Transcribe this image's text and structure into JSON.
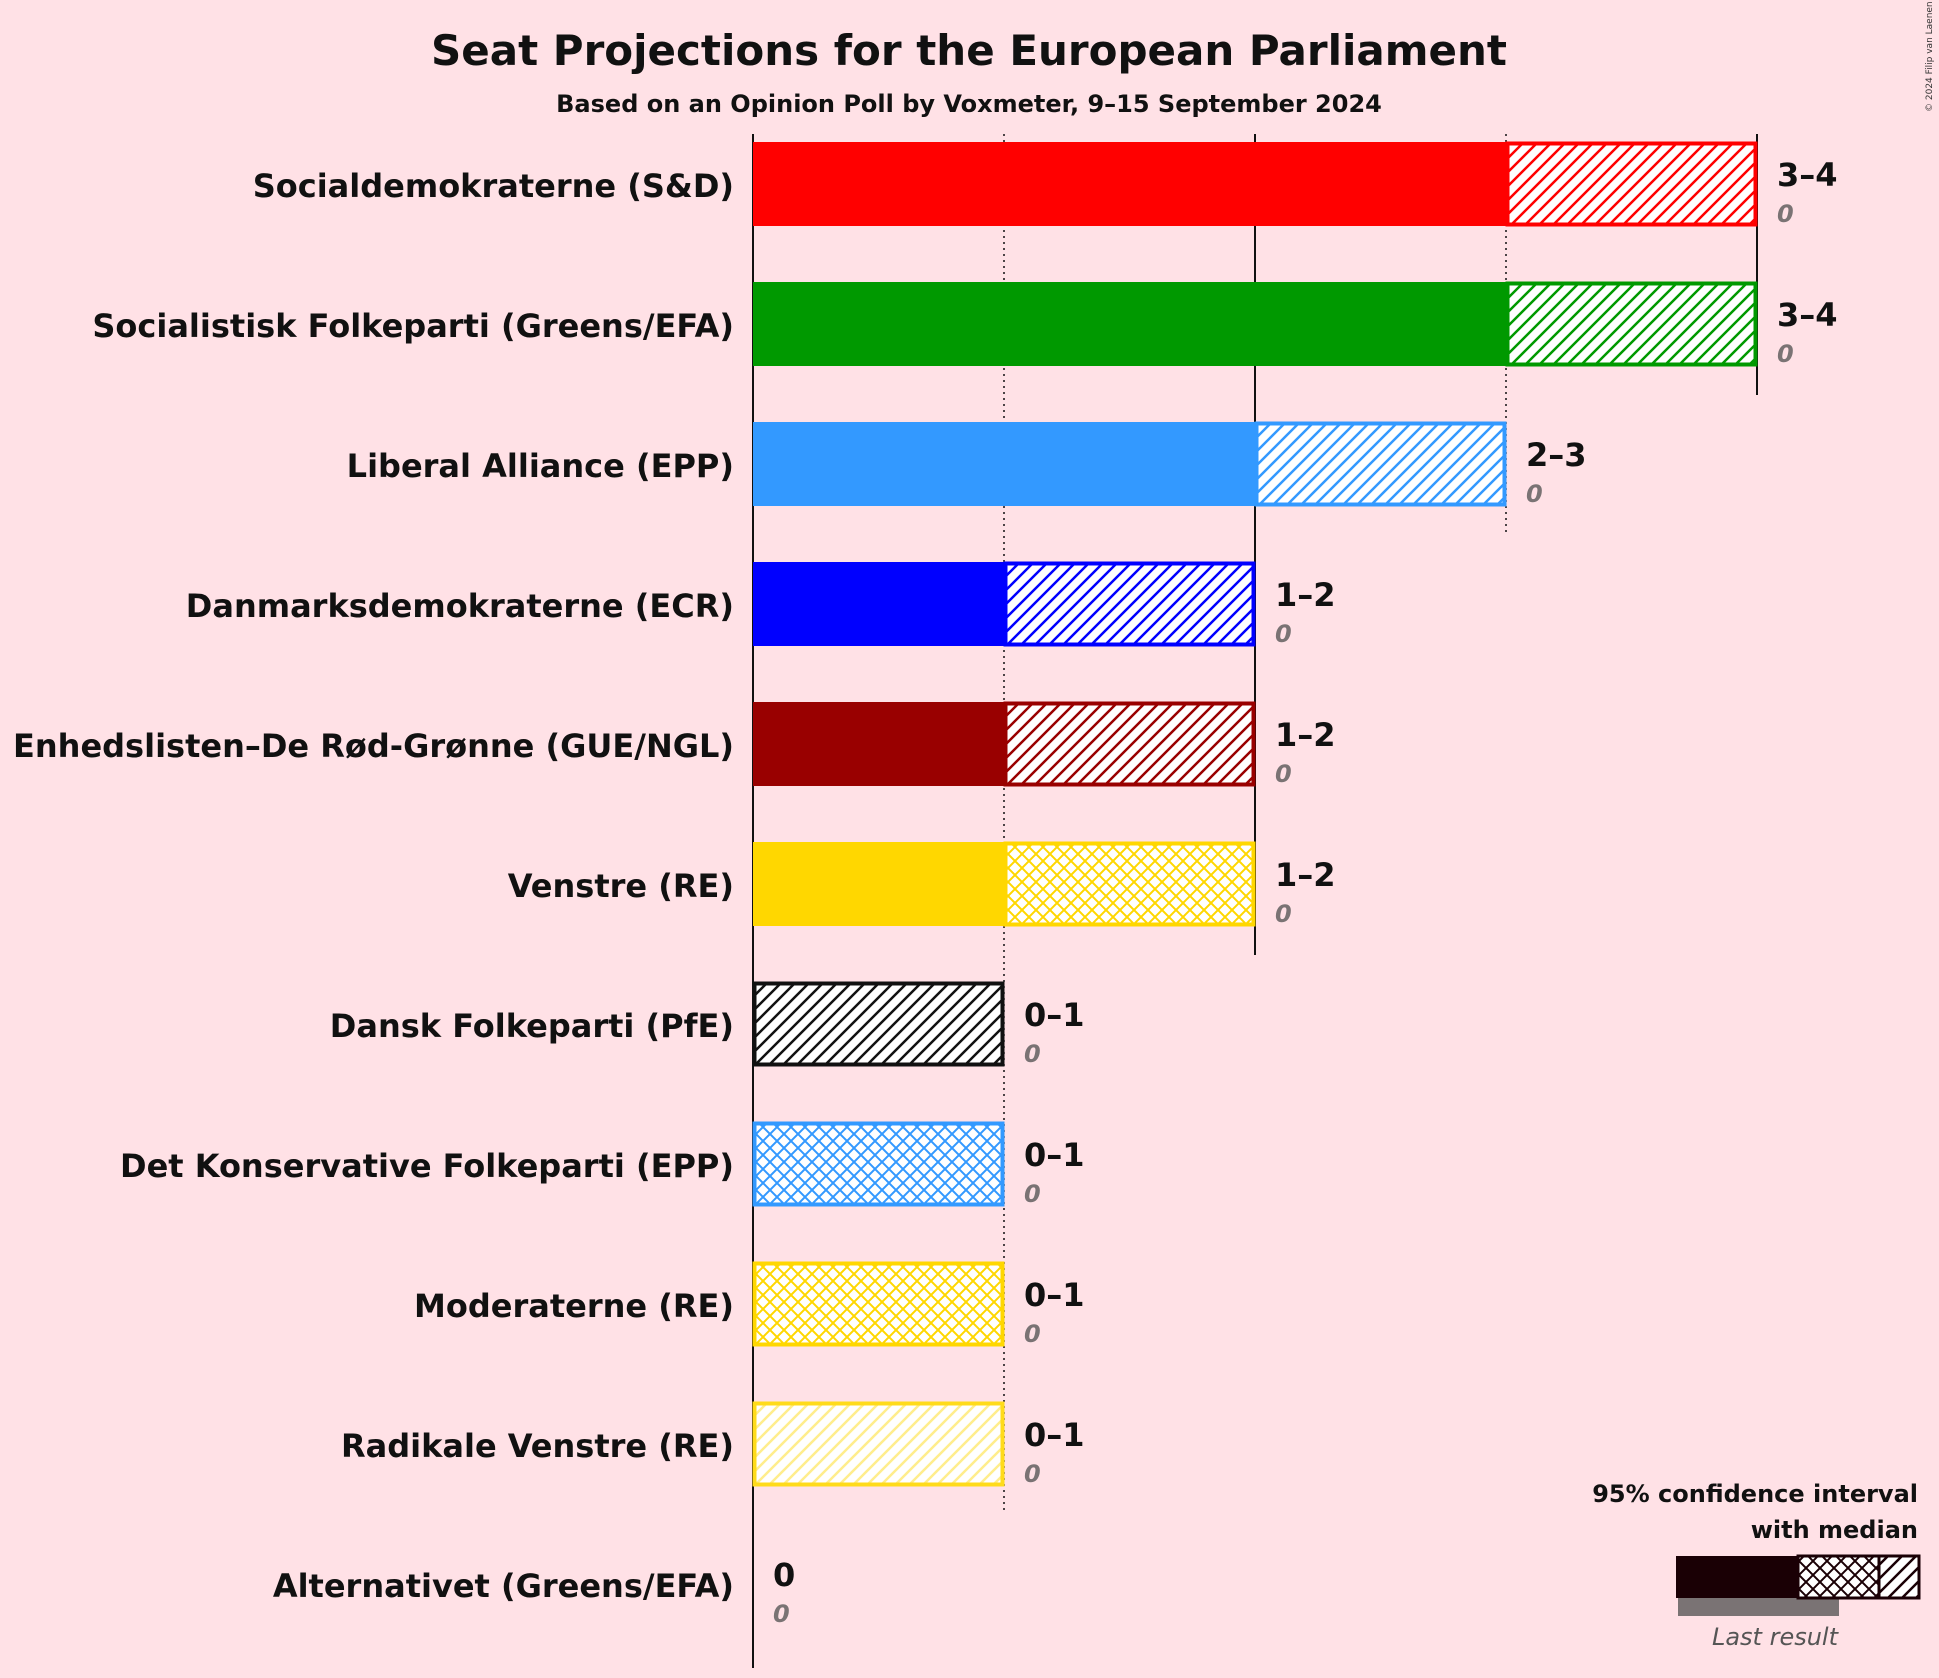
{
  "chart_data": {
    "type": "bar",
    "title": "Seat Projections for the European Parliament",
    "subtitle": "Based on an Opinion Poll by Voxmeter, 9–15 September 2024",
    "copyright": "© 2024 Filip van Laenen",
    "xlim": [
      0,
      4
    ],
    "series": [
      {
        "name": "Socialdemokraterne (S&D)",
        "color": "#FF0000",
        "median": 3,
        "low": 3,
        "high": 4,
        "range_label": "3–4",
        "last_result": "0",
        "pattern": "hatch"
      },
      {
        "name": "Socialistisk Folkeparti (Greens/EFA)",
        "color": "#009900",
        "median": 3,
        "low": 3,
        "high": 4,
        "range_label": "3–4",
        "last_result": "0",
        "pattern": "hatch"
      },
      {
        "name": "Liberal Alliance (EPP)",
        "color": "#3399FF",
        "median": 2,
        "low": 2,
        "high": 3,
        "range_label": "2–3",
        "last_result": "0",
        "pattern": "hatch"
      },
      {
        "name": "Danmarksdemokraterne (ECR)",
        "color": "#0000FF",
        "median": 1,
        "low": 1,
        "high": 2,
        "range_label": "1–2",
        "last_result": "0",
        "pattern": "hatch"
      },
      {
        "name": "Enhedslisten–De Rød-Grønne (GUE/NGL)",
        "color": "#990000",
        "median": 1,
        "low": 1,
        "high": 2,
        "range_label": "1–2",
        "last_result": "0",
        "pattern": "hatch"
      },
      {
        "name": "Venstre (RE)",
        "color": "#FFD700",
        "median": 2,
        "low": 1,
        "high": 2,
        "range_label": "1–2",
        "last_result": "0",
        "pattern": "cross"
      },
      {
        "name": "Dansk Folkeparti (PfE)",
        "color": "#111111",
        "median": 0,
        "low": 0,
        "high": 1,
        "range_label": "0–1",
        "last_result": "0",
        "pattern": "hatch"
      },
      {
        "name": "Det Konservative Folkeparti (EPP)",
        "color": "#3399FF",
        "median": 1,
        "low": 0,
        "high": 1,
        "range_label": "0–1",
        "last_result": "0",
        "pattern": "cross"
      },
      {
        "name": "Moderaterne (RE)",
        "color": "#FFD700",
        "median": 1,
        "low": 0,
        "high": 1,
        "range_label": "0–1",
        "last_result": "0",
        "pattern": "cross"
      },
      {
        "name": "Radikale Venstre (RE)",
        "color": "#FFD700",
        "median": 0,
        "low": 0,
        "high": 1,
        "range_label": "0–1",
        "last_result": "0",
        "pattern": "hatch-light"
      },
      {
        "name": "Alternativet (Greens/EFA)",
        "color": "#111111",
        "median": 0,
        "low": 0,
        "high": 0,
        "range_label": "0",
        "last_result": "0",
        "pattern": "none"
      }
    ],
    "legend": {
      "title_line1": "95% confidence interval",
      "title_line2": "with median",
      "last_result_label": "Last result",
      "placement": "bottom-right"
    }
  }
}
